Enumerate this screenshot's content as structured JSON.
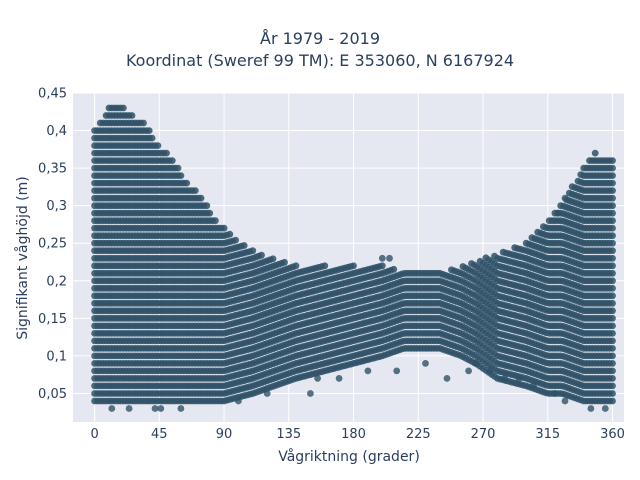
{
  "chart_data": {
    "type": "scatter",
    "title": "År 1979 - 2019",
    "subtitle": "Koordinat (Sweref 99 TM): E 353060, N 6167924",
    "xlabel": "Vågriktning (grader)",
    "ylabel": "Signifikant våghöjd (m)",
    "xlim": [
      -15,
      368
    ],
    "ylim": [
      0.012,
      0.45
    ],
    "x_ticks": [
      0,
      45,
      90,
      135,
      180,
      225,
      270,
      315,
      360
    ],
    "y_ticks": [
      0.05,
      0.1,
      0.15,
      0.2,
      0.25,
      0.3,
      0.35,
      0.4,
      0.45
    ],
    "y_tick_labels": [
      "0,05",
      "0,1",
      "0,15",
      "0,2",
      "0,25",
      "0,3",
      "0,35",
      "0,4",
      "0,45"
    ],
    "y_step": 0.01,
    "upper_envelope": [
      {
        "x": 0,
        "y": 0.4
      },
      {
        "x": 10,
        "y": 0.43
      },
      {
        "x": 20,
        "y": 0.43
      },
      {
        "x": 35,
        "y": 0.41
      },
      {
        "x": 45,
        "y": 0.38
      },
      {
        "x": 55,
        "y": 0.36
      },
      {
        "x": 65,
        "y": 0.33
      },
      {
        "x": 75,
        "y": 0.31
      },
      {
        "x": 85,
        "y": 0.28
      },
      {
        "x": 95,
        "y": 0.26
      },
      {
        "x": 110,
        "y": 0.24
      },
      {
        "x": 125,
        "y": 0.23
      },
      {
        "x": 140,
        "y": 0.22
      },
      {
        "x": 160,
        "y": 0.22
      },
      {
        "x": 180,
        "y": 0.22
      },
      {
        "x": 200,
        "y": 0.22
      },
      {
        "x": 220,
        "y": 0.21
      },
      {
        "x": 240,
        "y": 0.21
      },
      {
        "x": 255,
        "y": 0.22
      },
      {
        "x": 270,
        "y": 0.23
      },
      {
        "x": 285,
        "y": 0.24
      },
      {
        "x": 300,
        "y": 0.25
      },
      {
        "x": 310,
        "y": 0.27
      },
      {
        "x": 320,
        "y": 0.29
      },
      {
        "x": 330,
        "y": 0.32
      },
      {
        "x": 340,
        "y": 0.35
      },
      {
        "x": 348,
        "y": 0.37
      },
      {
        "x": 360,
        "y": 0.36
      }
    ],
    "lower_envelope": [
      {
        "x": 0,
        "y": 0.04
      },
      {
        "x": 90,
        "y": 0.04
      },
      {
        "x": 110,
        "y": 0.05
      },
      {
        "x": 125,
        "y": 0.06
      },
      {
        "x": 140,
        "y": 0.07
      },
      {
        "x": 160,
        "y": 0.08
      },
      {
        "x": 180,
        "y": 0.09
      },
      {
        "x": 200,
        "y": 0.1
      },
      {
        "x": 215,
        "y": 0.11
      },
      {
        "x": 240,
        "y": 0.11
      },
      {
        "x": 255,
        "y": 0.1
      },
      {
        "x": 265,
        "y": 0.09
      },
      {
        "x": 280,
        "y": 0.07
      },
      {
        "x": 300,
        "y": 0.06
      },
      {
        "x": 315,
        "y": 0.05
      },
      {
        "x": 325,
        "y": 0.05
      },
      {
        "x": 340,
        "y": 0.04
      },
      {
        "x": 360,
        "y": 0.04
      }
    ],
    "outlier_points": [
      {
        "x": 12,
        "y": 0.03
      },
      {
        "x": 24,
        "y": 0.03
      },
      {
        "x": 42,
        "y": 0.03
      },
      {
        "x": 46,
        "y": 0.03
      },
      {
        "x": 60,
        "y": 0.03
      },
      {
        "x": 100,
        "y": 0.04
      },
      {
        "x": 120,
        "y": 0.05
      },
      {
        "x": 150,
        "y": 0.05
      },
      {
        "x": 155,
        "y": 0.07
      },
      {
        "x": 170,
        "y": 0.07
      },
      {
        "x": 190,
        "y": 0.08
      },
      {
        "x": 200,
        "y": 0.23
      },
      {
        "x": 205,
        "y": 0.23
      },
      {
        "x": 210,
        "y": 0.08
      },
      {
        "x": 230,
        "y": 0.09
      },
      {
        "x": 245,
        "y": 0.07
      },
      {
        "x": 260,
        "y": 0.08
      },
      {
        "x": 265,
        "y": 0.09
      },
      {
        "x": 275,
        "y": 0.08
      },
      {
        "x": 285,
        "y": 0.07
      },
      {
        "x": 295,
        "y": 0.07
      },
      {
        "x": 305,
        "y": 0.06
      },
      {
        "x": 320,
        "y": 0.05
      },
      {
        "x": 327,
        "y": 0.04
      },
      {
        "x": 345,
        "y": 0.03
      },
      {
        "x": 355,
        "y": 0.03
      },
      {
        "x": 322,
        "y": 0.29
      },
      {
        "x": 327,
        "y": 0.31
      }
    ],
    "marker_color": "#2f5167",
    "grid": true
  },
  "colors": {
    "plot_bg": "#e5e8f0",
    "grid": "#ffffff",
    "text": "#2a3f5f"
  }
}
